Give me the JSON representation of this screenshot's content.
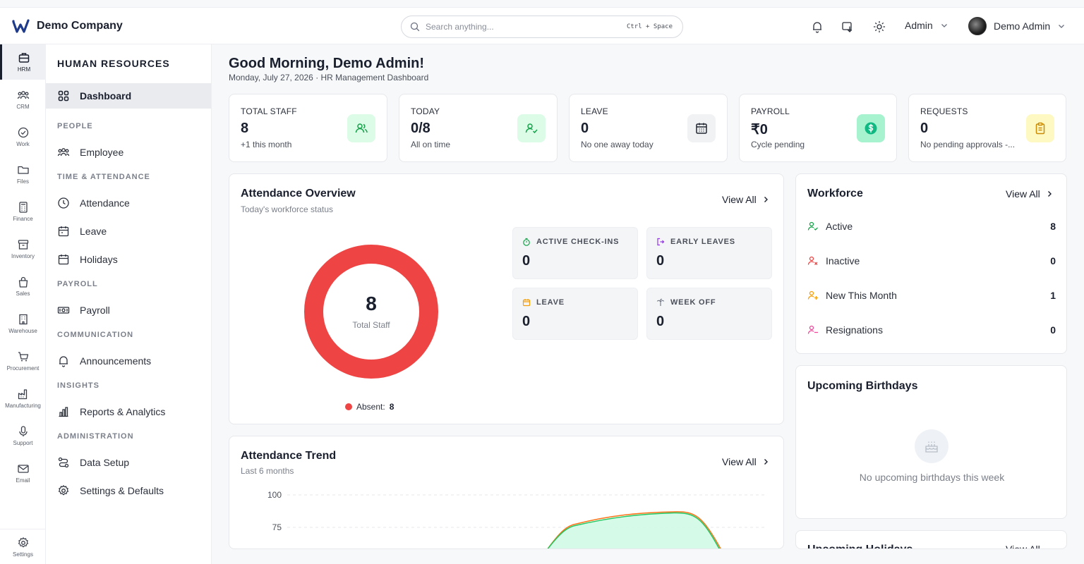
{
  "header": {
    "company": "Demo Company",
    "search_placeholder": "Search anything...",
    "search_shortcut": "Ctrl + Space",
    "role": "Admin",
    "user": "Demo Admin"
  },
  "rail": [
    {
      "label": "HRM",
      "icon": "briefcase-icon"
    },
    {
      "label": "CRM",
      "icon": "users-icon"
    },
    {
      "label": "Work",
      "icon": "check-circle-icon"
    },
    {
      "label": "Files",
      "icon": "folder-icon"
    },
    {
      "label": "Finance",
      "icon": "calculator-icon"
    },
    {
      "label": "Inventory",
      "icon": "archive-icon"
    },
    {
      "label": "Sales",
      "icon": "bag-icon"
    },
    {
      "label": "Warehouse",
      "icon": "building-icon"
    },
    {
      "label": "Procurement",
      "icon": "cart-icon"
    },
    {
      "label": "Manufacturing",
      "icon": "factory-icon"
    },
    {
      "label": "Support",
      "icon": "mic-icon"
    },
    {
      "label": "Email",
      "icon": "mail-icon"
    },
    {
      "label": "Settings",
      "icon": "gear-icon"
    }
  ],
  "sidebar": {
    "title": "HUMAN RESOURCES",
    "items": {
      "dashboard": "Dashboard",
      "employee": "Employee",
      "attendance": "Attendance",
      "leave": "Leave",
      "holidays": "Holidays",
      "payroll": "Payroll",
      "announcements": "Announcements",
      "reports": "Reports & Analytics",
      "data_setup": "Data Setup",
      "settings": "Settings & Defaults"
    },
    "sections": {
      "people": "PEOPLE",
      "time": "TIME & ATTENDANCE",
      "payroll": "PAYROLL",
      "communication": "COMMUNICATION",
      "insights": "INSIGHTS",
      "administration": "ADMINISTRATION"
    }
  },
  "main": {
    "greeting": "Good Morning, Demo Admin!",
    "subtitle": "Monday, July 27, 2026 · HR Management Dashboard",
    "stats": [
      {
        "label": "TOTAL STAFF",
        "value": "8",
        "note": "+1 this month",
        "icon": "users-icon",
        "color": "#16a34a",
        "bg": "#dcfce7"
      },
      {
        "label": "TODAY",
        "value": "0/8",
        "note": "All on time",
        "icon": "user-check-icon",
        "color": "#16a34a",
        "bg": "#dcfce7"
      },
      {
        "label": "LEAVE",
        "value": "0",
        "note": "No one away today",
        "icon": "calendar-icon",
        "color": "#1f2430",
        "bg": "#f1f2f4"
      },
      {
        "label": "PAYROLL",
        "value": "₹0",
        "note": "Cycle pending",
        "icon": "dollar-icon",
        "color": "#059669",
        "bg": "#d1fae5"
      },
      {
        "label": "REQUESTS",
        "value": "0",
        "note": "No pending approvals -...",
        "icon": "clipboard-icon",
        "color": "#ca8a04",
        "bg": "#fef9c3"
      }
    ],
    "overview": {
      "title": "Attendance Overview",
      "subtitle": "Today's workforce status",
      "view_all": "View All",
      "donut_value": "8",
      "donut_label": "Total Staff",
      "legend_label": "Absent:",
      "legend_value": "8",
      "absent_color": "#ef4444",
      "tiles": [
        {
          "label": "ACTIVE CHECK-INS",
          "value": "0",
          "icon": "stopwatch-icon",
          "color": "#16a34a"
        },
        {
          "label": "EARLY LEAVES",
          "value": "0",
          "icon": "logout-icon",
          "color": "#9333ea"
        },
        {
          "label": "LEAVE",
          "value": "0",
          "icon": "calendar-icon",
          "color": "#f59e0b"
        },
        {
          "label": "WEEK OFF",
          "value": "0",
          "icon": "palm-icon",
          "color": "#6b7280"
        }
      ]
    },
    "trend": {
      "title": "Attendance Trend",
      "subtitle": "Last 6 months",
      "view_all": "View All",
      "y_ticks": [
        "100",
        "75"
      ]
    },
    "workforce": {
      "title": "Workforce",
      "view_all": "View All",
      "rows": [
        {
          "label": "Active",
          "value": "8",
          "icon": "user-check-icon",
          "color": "#16a34a"
        },
        {
          "label": "Inactive",
          "value": "0",
          "icon": "user-x-icon",
          "color": "#ef4444"
        },
        {
          "label": "New This Month",
          "value": "1",
          "icon": "user-plus-icon",
          "color": "#f59e0b"
        },
        {
          "label": "Resignations",
          "value": "0",
          "icon": "user-minus-icon",
          "color": "#ec4899"
        }
      ]
    },
    "birthdays": {
      "title": "Upcoming Birthdays",
      "empty": "No upcoming birthdays this week"
    },
    "holidays": {
      "title": "Upcoming Holidays",
      "view_all": "View All"
    }
  }
}
